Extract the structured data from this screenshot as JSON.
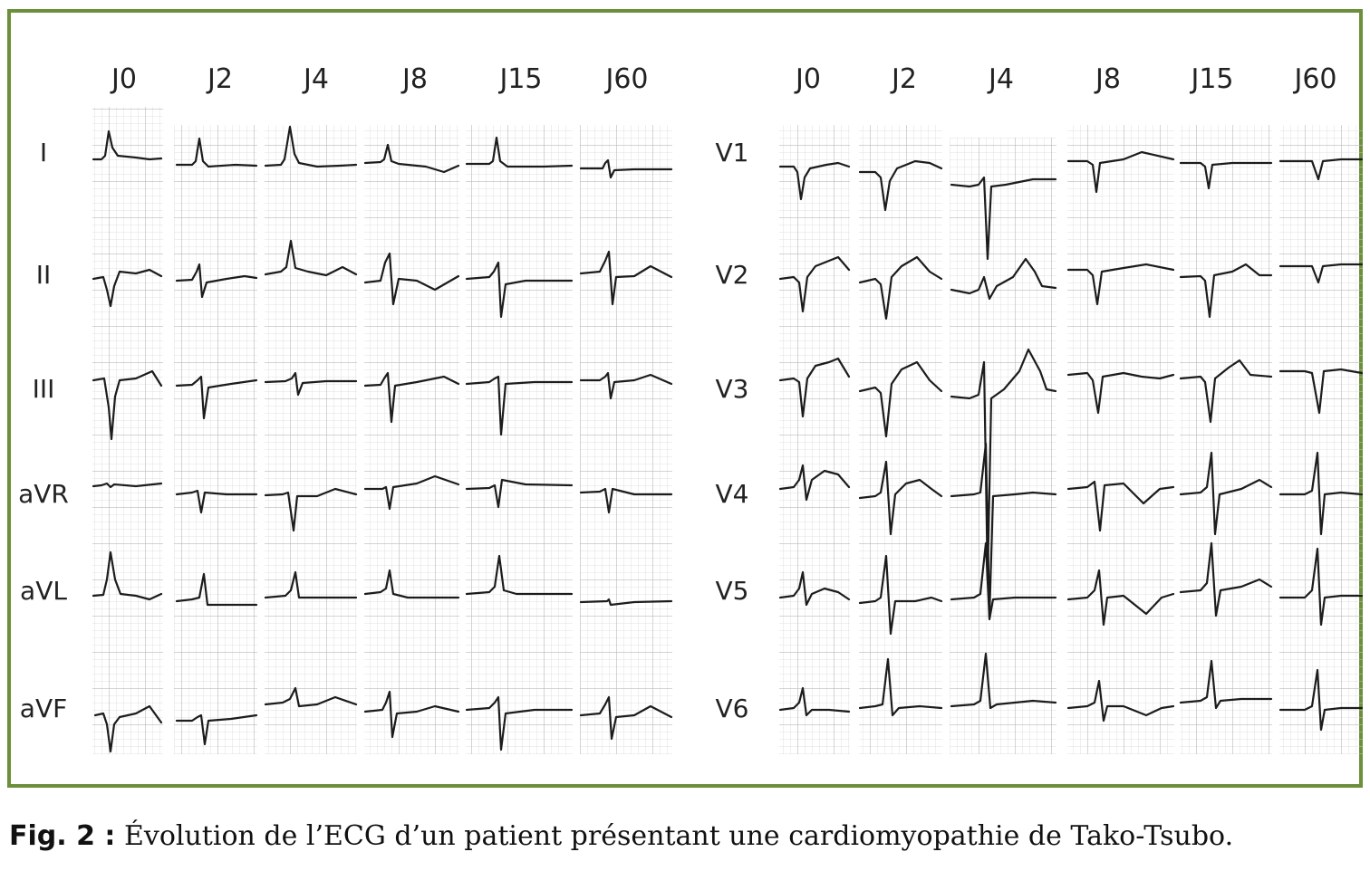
{
  "days": [
    "J0",
    "J2",
    "J4",
    "J8",
    "J15",
    "J60"
  ],
  "limb_leads": [
    "I",
    "II",
    "III",
    "aVR",
    "aVL",
    "aVF"
  ],
  "precordial_leads": [
    "V1",
    "V2",
    "V3",
    "V4",
    "V5",
    "V6"
  ],
  "colors": {
    "frame": "#6c8f3c",
    "grid_minor": "#d8d8d8",
    "grid_major": "#b8b8b8",
    "trace": "#1c1c1c"
  },
  "caption": {
    "fig_label": "Fig. 2 :",
    "text": "Évolution de l’ECG d’un patient présentant une cardiomyopathie de Tako-Tsubo."
  }
}
